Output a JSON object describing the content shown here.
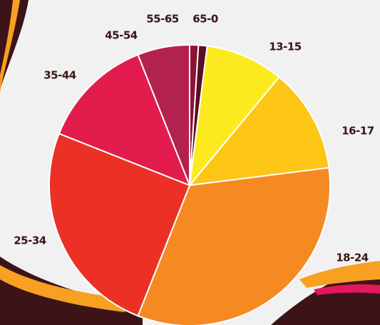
{
  "chart_data": {
    "type": "pie",
    "categories": [
      "55-65",
      "65-0",
      "13-15",
      "16-17",
      "18-24",
      "25-34",
      "35-44",
      "45-54"
    ],
    "values": [
      1,
      1,
      9,
      12,
      33,
      25,
      13,
      6
    ],
    "colors": [
      "#8c1236",
      "#5c0f22",
      "#fdea1e",
      "#fdc614",
      "#f58a22",
      "#ec3025",
      "#e21c4d",
      "#b3214f"
    ]
  }
}
